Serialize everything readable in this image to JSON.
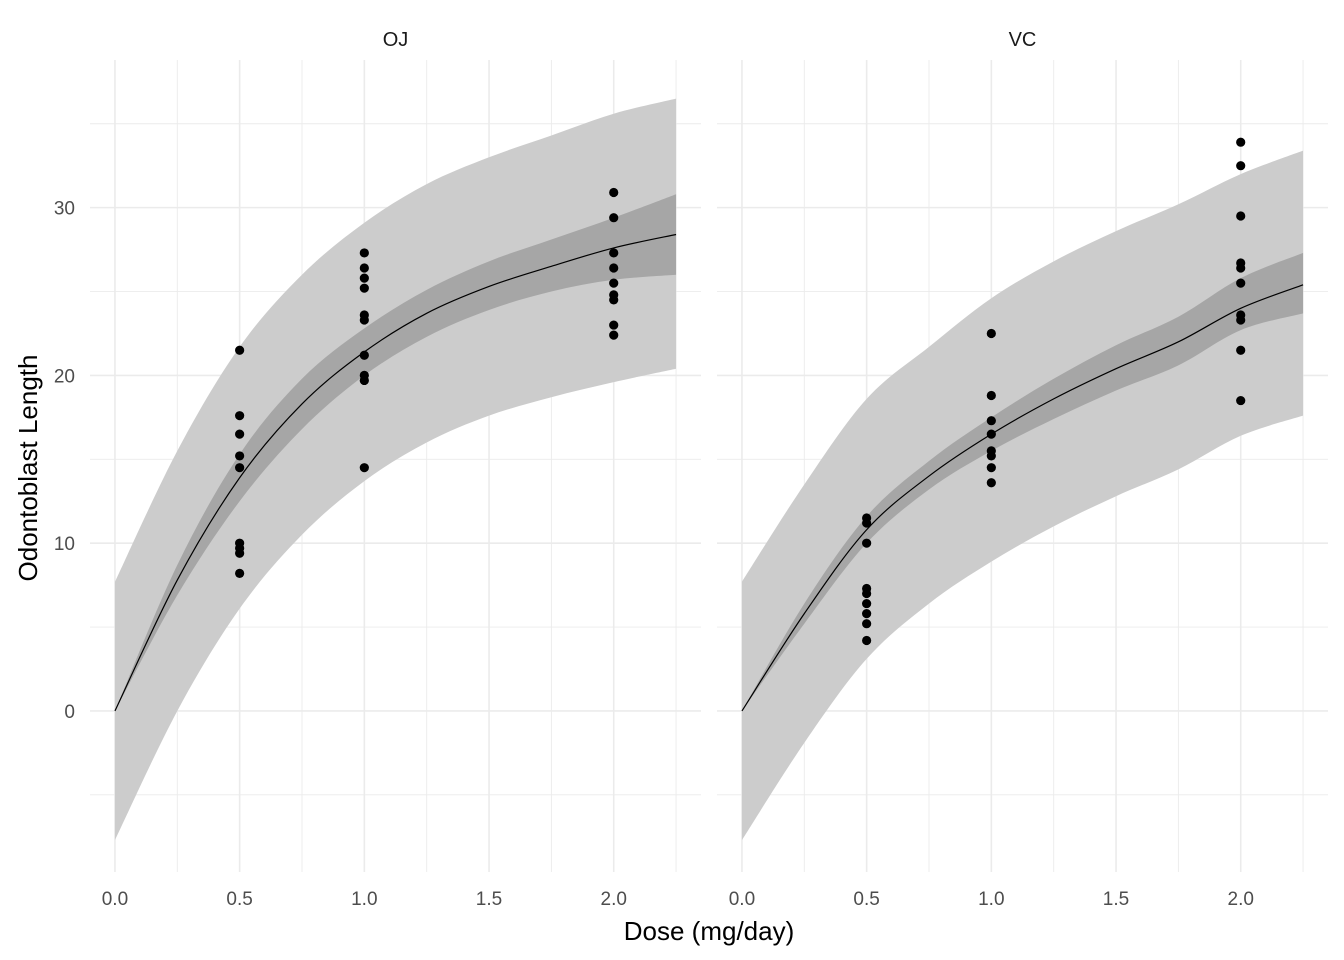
{
  "chart_data": {
    "type": "scatter",
    "xlabel": "Dose (mg/day)",
    "ylabel": "Odontoblast Length",
    "xlim": [
      -0.1,
      2.35
    ],
    "ylim": [
      -9.6,
      38.8
    ],
    "x_ticks": [
      0.0,
      0.5,
      1.0,
      1.5,
      2.0
    ],
    "x_tick_labels": [
      "0.0",
      "0.5",
      "1.0",
      "1.5",
      "2.0"
    ],
    "y_ticks": [
      0,
      10,
      20,
      30
    ],
    "y_tick_labels": [
      "0",
      "10",
      "20",
      "30"
    ],
    "grid": true,
    "colors": {
      "prediction_band": "#cccccc",
      "confidence_band": "#a6a6a6",
      "fit_line": "#000000",
      "points": "#000000",
      "grid": "#ebebeb"
    },
    "panels": [
      {
        "title": "OJ",
        "fit": [
          [
            0.0,
            0.0
          ],
          [
            0.25,
            7.8
          ],
          [
            0.5,
            13.9
          ],
          [
            0.75,
            18.3
          ],
          [
            1.0,
            21.4
          ],
          [
            1.25,
            23.7
          ],
          [
            1.5,
            25.3
          ],
          [
            1.75,
            26.5
          ],
          [
            2.0,
            27.6
          ],
          [
            2.25,
            28.4
          ]
        ],
        "confidence_band": [
          [
            0.0,
            0.0,
            0.0
          ],
          [
            0.25,
            6.9,
            8.7
          ],
          [
            0.5,
            12.5,
            15.3
          ],
          [
            0.75,
            16.8,
            19.8
          ],
          [
            1.0,
            20.0,
            22.8
          ],
          [
            1.25,
            22.3,
            25.1
          ],
          [
            1.5,
            23.9,
            26.8
          ],
          [
            1.75,
            25.0,
            28.1
          ],
          [
            2.0,
            25.7,
            29.4
          ],
          [
            2.25,
            26.0,
            30.8
          ]
        ],
        "prediction_band": [
          [
            0.0,
            -7.7,
            7.7
          ],
          [
            0.25,
            0.0,
            15.5
          ],
          [
            0.5,
            6.1,
            21.7
          ],
          [
            0.75,
            10.5,
            26.0
          ],
          [
            1.0,
            13.7,
            29.1
          ],
          [
            1.25,
            16.0,
            31.4
          ],
          [
            1.5,
            17.6,
            33.0
          ],
          [
            1.75,
            18.7,
            34.3
          ],
          [
            2.0,
            19.6,
            35.6
          ],
          [
            2.25,
            20.4,
            36.5
          ]
        ],
        "points": [
          [
            0.5,
            21.5
          ],
          [
            0.5,
            17.6
          ],
          [
            0.5,
            16.5
          ],
          [
            0.5,
            15.2
          ],
          [
            0.5,
            14.5
          ],
          [
            0.5,
            10.0
          ],
          [
            0.5,
            9.7
          ],
          [
            0.5,
            9.4
          ],
          [
            0.5,
            8.2
          ],
          [
            1.0,
            27.3
          ],
          [
            1.0,
            26.4
          ],
          [
            1.0,
            25.8
          ],
          [
            1.0,
            25.2
          ],
          [
            1.0,
            23.6
          ],
          [
            1.0,
            23.3
          ],
          [
            1.0,
            21.2
          ],
          [
            1.0,
            20.0
          ],
          [
            1.0,
            19.7
          ],
          [
            1.0,
            14.5
          ],
          [
            2.0,
            30.9
          ],
          [
            2.0,
            29.4
          ],
          [
            2.0,
            27.3
          ],
          [
            2.0,
            26.4
          ],
          [
            2.0,
            25.5
          ],
          [
            2.0,
            24.8
          ],
          [
            2.0,
            24.5
          ],
          [
            2.0,
            23.0
          ],
          [
            2.0,
            22.4
          ]
        ]
      },
      {
        "title": "VC",
        "fit": [
          [
            0.0,
            0.0
          ],
          [
            0.25,
            5.8
          ],
          [
            0.5,
            10.8
          ],
          [
            0.75,
            14.0
          ],
          [
            1.0,
            16.5
          ],
          [
            1.25,
            18.6
          ],
          [
            1.5,
            20.4
          ],
          [
            1.75,
            22.0
          ],
          [
            2.0,
            24.0
          ],
          [
            2.25,
            25.4
          ]
        ],
        "confidence_band": [
          [
            0.0,
            0.0,
            0.0
          ],
          [
            0.25,
            5.2,
            6.4
          ],
          [
            0.5,
            10.0,
            11.6
          ],
          [
            0.75,
            13.2,
            14.9
          ],
          [
            1.0,
            15.5,
            17.5
          ],
          [
            1.25,
            17.4,
            19.8
          ],
          [
            1.5,
            19.1,
            21.8
          ],
          [
            1.75,
            20.6,
            23.5
          ],
          [
            2.0,
            22.7,
            25.8
          ],
          [
            2.25,
            23.7,
            27.3
          ]
        ],
        "prediction_band": [
          [
            0.0,
            -7.7,
            7.7
          ],
          [
            0.25,
            -1.9,
            13.5
          ],
          [
            0.5,
            3.1,
            18.6
          ],
          [
            0.75,
            6.4,
            21.7
          ],
          [
            1.0,
            8.9,
            24.6
          ],
          [
            1.25,
            11.0,
            26.8
          ],
          [
            1.5,
            12.8,
            28.6
          ],
          [
            1.75,
            14.4,
            30.2
          ],
          [
            2.0,
            16.4,
            32.0
          ],
          [
            2.25,
            17.6,
            33.4
          ]
        ],
        "points": [
          [
            0.5,
            11.5
          ],
          [
            0.5,
            11.2
          ],
          [
            0.5,
            10.0
          ],
          [
            0.5,
            7.3
          ],
          [
            0.5,
            7.0
          ],
          [
            0.5,
            6.4
          ],
          [
            0.5,
            5.8
          ],
          [
            0.5,
            5.2
          ],
          [
            0.5,
            4.2
          ],
          [
            1.0,
            22.5
          ],
          [
            1.0,
            18.8
          ],
          [
            1.0,
            17.3
          ],
          [
            1.0,
            16.5
          ],
          [
            1.0,
            15.5
          ],
          [
            1.0,
            15.2
          ],
          [
            1.0,
            14.5
          ],
          [
            1.0,
            13.6
          ],
          [
            2.0,
            33.9
          ],
          [
            2.0,
            32.5
          ],
          [
            2.0,
            29.5
          ],
          [
            2.0,
            26.7
          ],
          [
            2.0,
            26.4
          ],
          [
            2.0,
            25.5
          ],
          [
            2.0,
            23.6
          ],
          [
            2.0,
            23.3
          ],
          [
            2.0,
            21.5
          ],
          [
            2.0,
            18.5
          ]
        ]
      }
    ]
  }
}
